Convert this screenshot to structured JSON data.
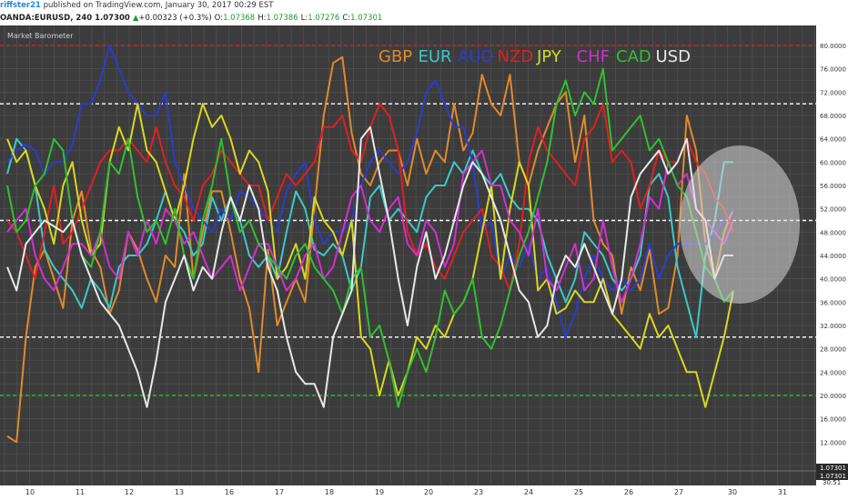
{
  "header": {
    "publisher": "riffster21",
    "published_text": "published on TradingView.com, January 30, 2017 00:29 EST",
    "symbol": "OANDA:EURUSD, 240",
    "price": "1.07300",
    "change_arrow": "▲",
    "change": "+0.00323 (+0.3%)",
    "o_label": "O:",
    "o_value": "1.07368",
    "h_label": "H:",
    "h_value": "1.07386",
    "l_label": "L:",
    "l_value": "1.07276",
    "c_label": "C:",
    "c_value": "1.07301"
  },
  "panel": {
    "title": "Market Barometer",
    "price_label_1": "1.07301",
    "price_label_2": "1.07301",
    "time_label": "30:51"
  },
  "colors": {
    "background": "#3c3c3c",
    "grid": "#555555",
    "GBP": "#e08a2c",
    "EUR": "#3cc8c8",
    "AUD": "#2a3ccf",
    "NZD": "#e02020",
    "JPY": "#d8d820",
    "CHF": "#d030d0",
    "CAD": "#30c030",
    "USD": "#e8e8e8"
  },
  "chart_data": {
    "type": "line",
    "title": "Market Barometer",
    "ylim": [
      4,
      82
    ],
    "y_ticks": [
      "80.0000",
      "76.0000",
      "72.0000",
      "68.0000",
      "64.0000",
      "60.0000",
      "56.0000",
      "52.0000",
      "48.0000",
      "44.0000",
      "40.0000",
      "36.0000",
      "32.0000",
      "28.0000",
      "24.0000",
      "20.0000",
      "16.0000",
      "12.0000",
      "8.0000"
    ],
    "x_ticks": [
      "10",
      "11",
      "12",
      "13",
      "16",
      "17",
      "18",
      "19",
      "20",
      "23",
      "24",
      "25",
      "26",
      "27",
      "30",
      "31"
    ],
    "reference_lines": [
      {
        "value": 80,
        "color": "#d02020"
      },
      {
        "value": 70,
        "color": "#ffffff"
      },
      {
        "value": 50,
        "color": "#ffffff"
      },
      {
        "value": 30,
        "color": "#ffffff"
      },
      {
        "value": 20,
        "color": "#20c020"
      }
    ],
    "series": [
      {
        "name": "GBP",
        "values": [
          13,
          12,
          30,
          42,
          45,
          40,
          35,
          50,
          55,
          45,
          42,
          34,
          38,
          48,
          45,
          40,
          36,
          44,
          42,
          58,
          40,
          48,
          55,
          55,
          48,
          40,
          35,
          24,
          45,
          32,
          36,
          40,
          36,
          52,
          68,
          77,
          78,
          65,
          58,
          56,
          60,
          62,
          62,
          56,
          64,
          58,
          62,
          60,
          70,
          62,
          65,
          75,
          70,
          68,
          75,
          60,
          56,
          62,
          66,
          70,
          72,
          60,
          68,
          50,
          46,
          44,
          34,
          42,
          38,
          45,
          34,
          35,
          44,
          68,
          62,
          46,
          40,
          48,
          52
        ]
      },
      {
        "name": "EUR",
        "values": [
          58,
          64,
          62,
          56,
          45,
          42,
          40,
          38,
          35,
          40,
          38,
          35,
          42,
          44,
          44,
          46,
          50,
          55,
          50,
          48,
          44,
          46,
          54,
          50,
          54,
          50,
          44,
          42,
          44,
          40,
          48,
          55,
          52,
          45,
          44,
          46,
          44,
          38,
          42,
          54,
          56,
          50,
          52,
          50,
          48,
          54,
          56,
          56,
          60,
          58,
          62,
          58,
          56,
          58,
          54,
          52,
          52,
          50,
          44,
          40,
          36,
          40,
          48,
          46,
          44,
          40,
          38,
          40,
          44,
          56,
          58,
          54,
          42,
          36,
          30,
          44,
          50,
          60,
          60
        ]
      },
      {
        "name": "AUD",
        "values": [
          60,
          62,
          63,
          62,
          58,
          60,
          60,
          63,
          70,
          70,
          74,
          80,
          76,
          72,
          70,
          68,
          68,
          72,
          60,
          56,
          52,
          50,
          48,
          52,
          50,
          55,
          54,
          52,
          50,
          48,
          55,
          58,
          60,
          50,
          46,
          48,
          48,
          50,
          56,
          60,
          62,
          60,
          58,
          60,
          65,
          72,
          74,
          70,
          66,
          66,
          60,
          48,
          50,
          40,
          44,
          42,
          46,
          40,
          42,
          36,
          30,
          34,
          40,
          44,
          40,
          38,
          40,
          38,
          40,
          46,
          40,
          44,
          46,
          46,
          46,
          46,
          48,
          50,
          52
        ]
      },
      {
        "name": "NZD",
        "values": [
          50,
          48,
          44,
          40,
          48,
          56,
          46,
          48,
          52,
          56,
          60,
          62,
          62,
          64,
          62,
          60,
          66,
          60,
          56,
          54,
          50,
          56,
          58,
          62,
          60,
          58,
          56,
          56,
          50,
          54,
          58,
          56,
          58,
          60,
          66,
          66,
          68,
          62,
          60,
          66,
          70,
          68,
          62,
          48,
          44,
          46,
          42,
          40,
          44,
          48,
          50,
          52,
          44,
          42,
          38,
          46,
          60,
          66,
          62,
          60,
          58,
          56,
          64,
          66,
          70,
          60,
          62,
          60,
          52,
          56,
          62,
          60,
          60,
          64,
          60,
          58,
          54,
          52,
          48
        ]
      },
      {
        "name": "JPY",
        "values": [
          64,
          60,
          62,
          56,
          52,
          46,
          56,
          60,
          50,
          44,
          46,
          60,
          66,
          62,
          70,
          62,
          60,
          55,
          50,
          56,
          64,
          70,
          66,
          68,
          64,
          58,
          62,
          60,
          55,
          40,
          42,
          46,
          40,
          54,
          50,
          48,
          44,
          50,
          30,
          28,
          20,
          26,
          20,
          24,
          30,
          28,
          32,
          30,
          34,
          36,
          40,
          48,
          56,
          40,
          52,
          60,
          56,
          38,
          40,
          34,
          35,
          38,
          36,
          36,
          40,
          34,
          32,
          30,
          28,
          34,
          30,
          32,
          28,
          24,
          24,
          18,
          24,
          30,
          38
        ]
      },
      {
        "name": "CHF",
        "values": [
          48,
          50,
          52,
          44,
          40,
          38,
          42,
          46,
          46,
          44,
          48,
          42,
          40,
          48,
          44,
          50,
          46,
          52,
          50,
          46,
          48,
          44,
          40,
          42,
          44,
          38,
          42,
          46,
          46,
          42,
          38,
          40,
          44,
          46,
          40,
          42,
          48,
          54,
          56,
          50,
          48,
          52,
          54,
          46,
          44,
          50,
          48,
          42,
          46,
          58,
          60,
          62,
          56,
          56,
          50,
          48,
          44,
          52,
          40,
          38,
          42,
          46,
          38,
          40,
          50,
          42,
          36,
          40,
          46,
          54,
          52,
          60,
          56,
          58,
          52,
          50,
          48,
          46,
          50
        ]
      },
      {
        "name": "CAD",
        "values": [
          56,
          48,
          50,
          56,
          58,
          64,
          62,
          50,
          44,
          42,
          48,
          60,
          58,
          64,
          54,
          48,
          50,
          46,
          52,
          44,
          40,
          50,
          56,
          64,
          54,
          48,
          50,
          46,
          44,
          42,
          40,
          44,
          46,
          42,
          40,
          38,
          34,
          40,
          42,
          30,
          32,
          26,
          18,
          24,
          28,
          24,
          30,
          38,
          34,
          36,
          40,
          30,
          28,
          32,
          38,
          44,
          48,
          54,
          60,
          70,
          74,
          68,
          72,
          70,
          76,
          62,
          64,
          66,
          68,
          62,
          64,
          60,
          56,
          54,
          48,
          42,
          40,
          36,
          38
        ]
      },
      {
        "name": "USD",
        "values": [
          42,
          38,
          46,
          48,
          50,
          49,
          48,
          50,
          44,
          40,
          36,
          34,
          32,
          28,
          24,
          18,
          26,
          36,
          40,
          44,
          38,
          42,
          40,
          48,
          54,
          50,
          56,
          52,
          42,
          38,
          30,
          24,
          22,
          22,
          18,
          30,
          34,
          38,
          64,
          66,
          58,
          50,
          40,
          32,
          42,
          48,
          40,
          44,
          50,
          56,
          60,
          58,
          54,
          50,
          44,
          38,
          36,
          30,
          32,
          40,
          44,
          42,
          46,
          42,
          38,
          34,
          40,
          54,
          58,
          60,
          62,
          58,
          60,
          64,
          52,
          50,
          40,
          44,
          44
        ]
      }
    ]
  }
}
